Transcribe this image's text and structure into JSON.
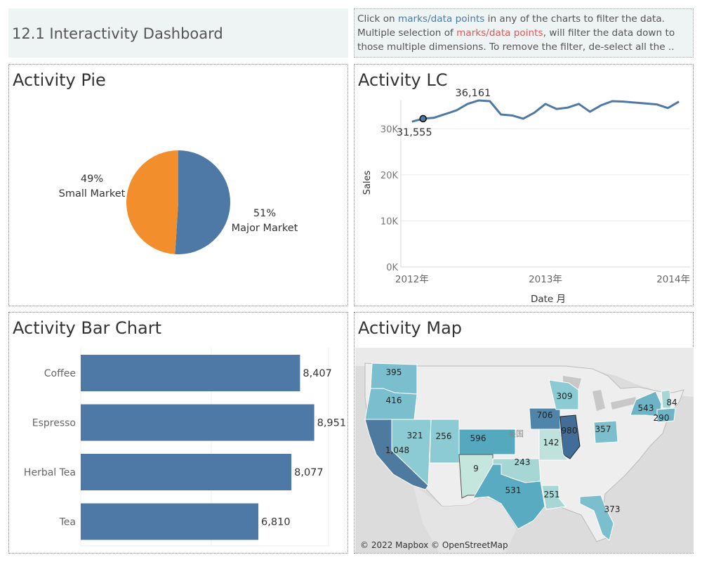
{
  "dashboard": {
    "title": "12.1 Interactivity Dashboard",
    "instructions": {
      "p1": "Click on ",
      "h1": "marks/data points",
      "p2": " in any of the charts to filter the data.",
      "p3": "Multiple selection of ",
      "h2": "marks/data points",
      "p4": ", will filter the data down to",
      "p5": "those multiple dimensions. To remove the filter, de-select all the .."
    }
  },
  "panels": {
    "pie_title": "Activity Pie",
    "lc_title": "Activity LC",
    "bar_title": "Activity Bar Chart",
    "map_title": "Activity Map",
    "map_credit": "© 2022 Mapbox © OpenStreetMap",
    "map_country_label": "美国"
  },
  "colors": {
    "blue": "#4e79a7",
    "orange": "#f28e2b",
    "map_light": "#a6d8d2",
    "map_mid": "#6db5c6",
    "map_dark": "#4a7aa6"
  },
  "chart_data": [
    {
      "type": "pie",
      "slices": [
        {
          "label": "Major Market",
          "pct_label": "51%",
          "value": 51,
          "color": "#4e79a7"
        },
        {
          "label": "Small Market",
          "pct_label": "49%",
          "value": 49,
          "color": "#f28e2b"
        }
      ]
    },
    {
      "type": "line",
      "xlabel": "Date 月",
      "ylabel": "Sales",
      "ylim": [
        0,
        36000
      ],
      "yticks": [
        0,
        10000,
        20000,
        30000
      ],
      "ytick_labels": [
        "0K",
        "10K",
        "20K",
        "30K"
      ],
      "xticks": [
        {
          "label": "2012年",
          "x": "2012-01"
        },
        {
          "label": "2013年",
          "x": "2013-01"
        },
        {
          "label": "2014年",
          "x": "2014-01"
        }
      ],
      "x": [
        "2012-01",
        "2012-02",
        "2012-03",
        "2012-04",
        "2012-05",
        "2012-06",
        "2012-07",
        "2012-08",
        "2012-09",
        "2012-10",
        "2012-11",
        "2012-12",
        "2013-01",
        "2013-02",
        "2013-03",
        "2013-04",
        "2013-05",
        "2013-06",
        "2013-07",
        "2013-08",
        "2013-09",
        "2013-10",
        "2013-11",
        "2013-12",
        "2014-01"
      ],
      "series": [
        {
          "values": [
            31555,
            32200,
            32400,
            33200,
            34000,
            35400,
            36161,
            36000,
            33100,
            32900,
            32200,
            33500,
            35400,
            34300,
            34600,
            35400,
            33700,
            35100,
            36000,
            35900,
            35700,
            35500,
            35300,
            34500,
            35900
          ]
        }
      ],
      "annotations": [
        {
          "x": "2012-01",
          "label": "31,555"
        },
        {
          "x": "2012-07",
          "label": "36,161"
        }
      ],
      "selected_point": "2012-02"
    },
    {
      "type": "bar",
      "orientation": "horizontal",
      "categories": [
        "Coffee",
        "Espresso",
        "Herbal Tea",
        "Tea"
      ],
      "values": [
        8407,
        8951,
        8077,
        6810
      ],
      "value_labels": [
        "8,407",
        "8,951",
        "8,077",
        "6,810"
      ],
      "xlim": [
        0,
        9500
      ]
    },
    {
      "type": "choropleth",
      "regions": [
        {
          "state": "Washington",
          "label": "395"
        },
        {
          "state": "Oregon",
          "label": "416"
        },
        {
          "state": "California",
          "label": "1,048"
        },
        {
          "state": "Nevada",
          "label": "321"
        },
        {
          "state": "Utah",
          "label": "256"
        },
        {
          "state": "Colorado",
          "label": "596"
        },
        {
          "state": "New Mexico",
          "label": "9"
        },
        {
          "state": "Texas",
          "label": "531"
        },
        {
          "state": "Oklahoma",
          "label": "243"
        },
        {
          "state": "Louisiana",
          "label": "251"
        },
        {
          "state": "Iowa",
          "label": "706"
        },
        {
          "state": "Wisconsin",
          "label": "309"
        },
        {
          "state": "Illinois",
          "label": "980"
        },
        {
          "state": "Missouri",
          "label": "142"
        },
        {
          "state": "Ohio",
          "label": "357"
        },
        {
          "state": "New York",
          "label": "543"
        },
        {
          "state": "New Hampshire",
          "label": "84"
        },
        {
          "state": "Connecticut",
          "label": "290"
        },
        {
          "state": "Florida",
          "label": "373"
        }
      ]
    }
  ]
}
